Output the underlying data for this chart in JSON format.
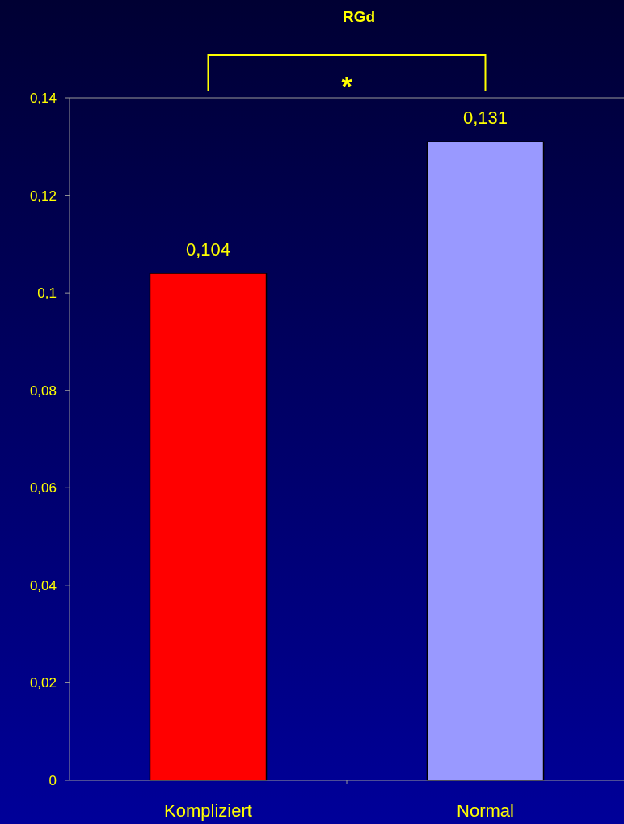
{
  "chart_data": {
    "type": "bar",
    "title": "RGd",
    "categories": [
      "Kompliziert",
      "Normal"
    ],
    "values": [
      0.104,
      0.131
    ],
    "colors": [
      "#ff0000",
      "#9999ff"
    ],
    "value_labels": [
      "0,104",
      "0,131"
    ],
    "ylim": [
      0,
      0.14
    ],
    "yticks": [
      0,
      {
        "value": 0.02,
        "label": "0,02"
      },
      {
        "value": 0.04,
        "label": "0,04"
      },
      {
        "value": 0.06,
        "label": "0,06"
      },
      {
        "value": 0.08,
        "label": "0,08"
      },
      {
        "value": 0.1,
        "label": "0,1"
      },
      {
        "value": 0.12,
        "label": "0,12"
      },
      {
        "value": 0.14,
        "label": "0,14"
      }
    ],
    "grid": false,
    "annotations": [
      "*"
    ]
  }
}
